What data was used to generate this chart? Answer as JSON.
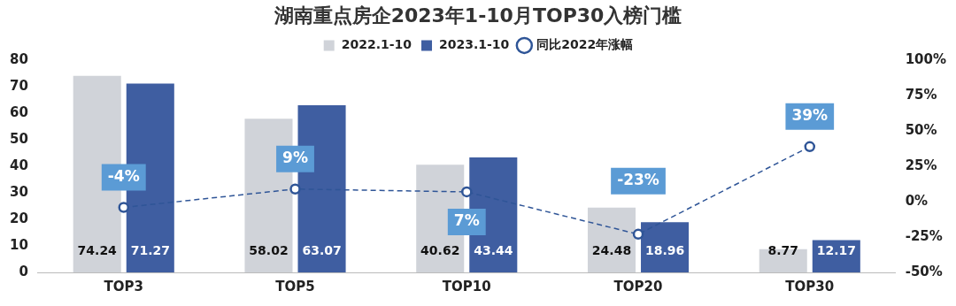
{
  "chart_data": {
    "type": "bar",
    "title": "湖南重点房企2023年1-10月TOP30入榜门槛",
    "categories": [
      "TOP3",
      "TOP5",
      "TOP10",
      "TOP20",
      "TOP30"
    ],
    "series": [
      {
        "name": "2022.1-10",
        "color": "#d0d3d9",
        "values": [
          74.24,
          58.02,
          40.62,
          24.48,
          8.77
        ],
        "value_labels": [
          "74.24",
          "58.02",
          "40.62",
          "24.48",
          "8.77"
        ]
      },
      {
        "name": "2023.1-10",
        "color": "#3f5ea1",
        "values": [
          71.27,
          63.07,
          43.44,
          18.96,
          12.17
        ],
        "value_labels": [
          "71.27",
          "63.07",
          "43.44",
          "18.96",
          "12.17"
        ]
      },
      {
        "name": "同比2022年涨幅",
        "type": "line",
        "axis": "y2",
        "color": "#2f5597",
        "marker": "circle",
        "line_style": "dashed",
        "values": [
          -4,
          9,
          7,
          -23,
          39
        ],
        "value_labels": [
          "-4%",
          "9%",
          "7%",
          "-23%",
          "39%"
        ]
      }
    ],
    "ylim": [
      0,
      80
    ],
    "yticks": [
      0,
      10,
      20,
      30,
      40,
      50,
      60,
      70,
      80
    ],
    "y2lim": [
      -50,
      100
    ],
    "y2ticks": [
      {
        "value": -50,
        "label": "-50%"
      },
      {
        "value": -25,
        "label": "-25%"
      },
      {
        "value": 0,
        "label": "0%"
      },
      {
        "value": 25,
        "label": "25%"
      },
      {
        "value": 50,
        "label": "50%"
      },
      {
        "value": 75,
        "label": "75%"
      },
      {
        "value": 100,
        "label": "100%"
      }
    ],
    "grid": false,
    "legend": "top"
  }
}
